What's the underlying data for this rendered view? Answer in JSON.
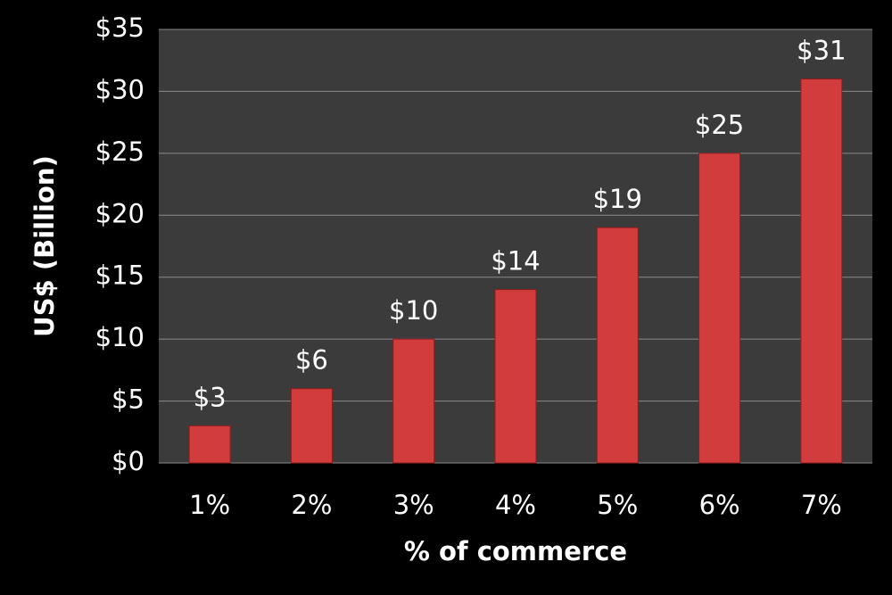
{
  "chart_data": {
    "type": "bar",
    "x_label": "% of commerce",
    "y_label": "US$ (Billion)",
    "categories": [
      "1%",
      "2%",
      "3%",
      "4%",
      "5%",
      "6%",
      "7%"
    ],
    "values": [
      3,
      6,
      10,
      14,
      19,
      25,
      31
    ],
    "value_labels": [
      "$3",
      "$6",
      "$10",
      "$14",
      "$19",
      "$25",
      "$31"
    ],
    "color": "#d23c3c",
    "ylim": [
      0,
      35
    ],
    "yticks": [
      {
        "value": 0,
        "label": "$0"
      },
      {
        "value": 5,
        "label": "$5"
      },
      {
        "value": 10,
        "label": "$10"
      },
      {
        "value": 15,
        "label": "$15"
      },
      {
        "value": 20,
        "label": "$20"
      },
      {
        "value": 25,
        "label": "$25"
      },
      {
        "value": 30,
        "label": "$30"
      },
      {
        "value": 35,
        "label": "$35"
      }
    ],
    "grid": true
  }
}
